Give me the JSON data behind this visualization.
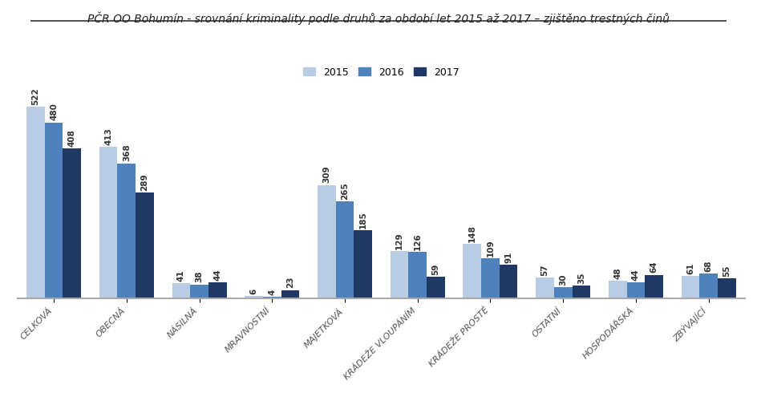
{
  "title": "PČR OO Bohumín - srovnání kriminality podle druhů za období let 2015 až 2017 – zjištěno trestných činů",
  "categories": [
    "CELKOVÁ",
    "OBECNÁ",
    "NÁSILNÁ",
    "MRAVNOSTNÍ",
    "MAJETKOVÁ",
    "KRÁDEŽE VLOUPÁNÍM",
    "KRÁDEŽE PROSTÉ",
    "OSTATNÍ",
    "HOSPODÁŘSKÁ",
    "ZBÝVAJÍCÍ"
  ],
  "series": {
    "2015": [
      522,
      413,
      41,
      6,
      309,
      129,
      148,
      57,
      48,
      61
    ],
    "2016": [
      480,
      368,
      38,
      4,
      265,
      126,
      109,
      30,
      44,
      68
    ],
    "2017": [
      408,
      289,
      44,
      23,
      185,
      59,
      91,
      35,
      64,
      55
    ]
  },
  "colors": {
    "2015": "#b8cce4",
    "2016": "#4f81bd",
    "2017": "#1f3864"
  },
  "legend_labels": [
    "2015",
    "2016",
    "2017"
  ],
  "bar_width": 0.25,
  "ylim": [
    0,
    580
  ],
  "title_fontsize": 10,
  "tick_fontsize": 8,
  "label_fontsize": 7.5,
  "background_color": "#ffffff"
}
